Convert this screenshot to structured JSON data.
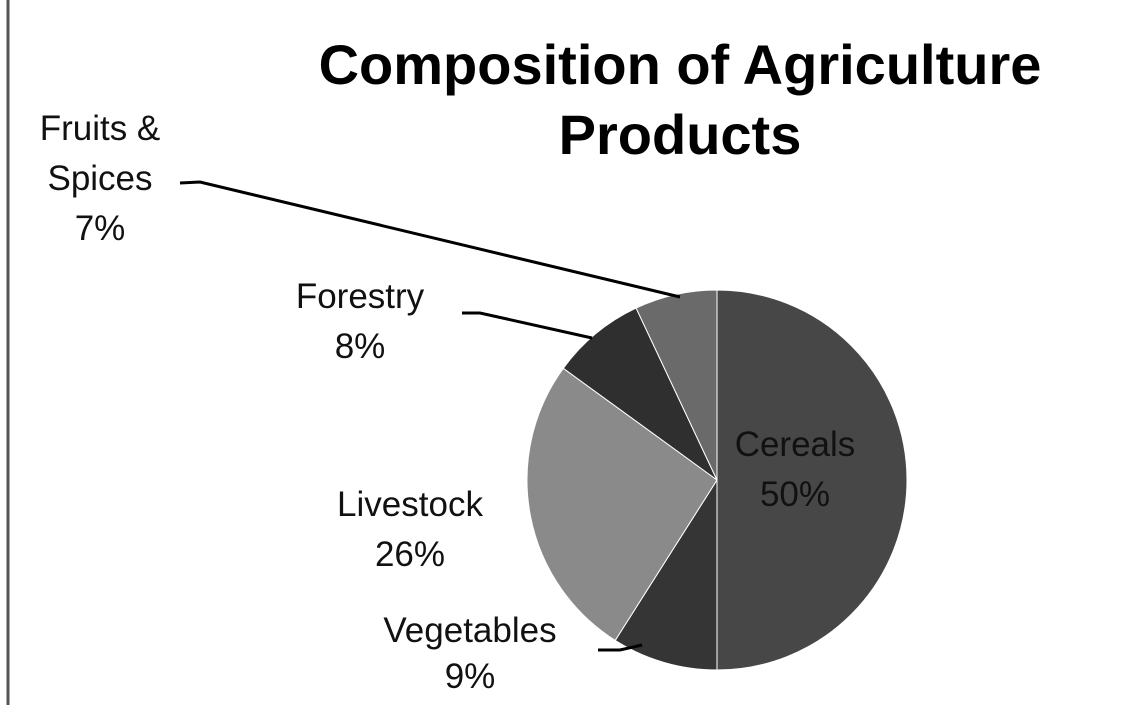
{
  "chart_data": {
    "type": "pie",
    "title": "Composition of Agriculture Products",
    "categories": [
      "Cereals",
      "Vegetables",
      "Livestock",
      "Forestry",
      "Fruits & Spices"
    ],
    "values": [
      50,
      9,
      26,
      8,
      7
    ],
    "value_labels": [
      "50%",
      "9%",
      "26%",
      "8%",
      "7%"
    ],
    "colors": [
      "#474747",
      "#353535",
      "#8a8a8a",
      "#2f2f2f",
      "#6a6a6a"
    ]
  }
}
